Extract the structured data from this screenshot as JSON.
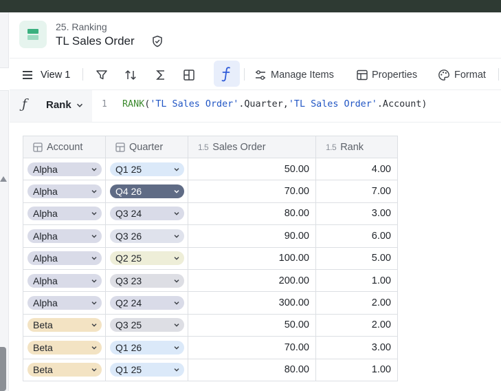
{
  "header": {
    "breadcrumb": "25. Ranking",
    "title": "TL Sales Order"
  },
  "toolbar": {
    "view_label": "View 1",
    "manage_items": "Manage Items",
    "properties": "Properties",
    "format": "Format"
  },
  "formula": {
    "field": "Rank",
    "line_number": "1",
    "fn": "RANK",
    "arg1": "'TL Sales Order'",
    "arg1_field": ".Quarter,",
    "arg2": "'TL Sales Order'",
    "arg2_field": ".Account)"
  },
  "table": {
    "columns": [
      "Account",
      "Quarter",
      "Sales Order",
      "Rank"
    ],
    "number_icon": "1.5",
    "rows": [
      {
        "account": "Alpha",
        "quarter": "Q1 25",
        "qcolor": "#dbe9f9",
        "qtext": "#1f2329",
        "sales": "50.00",
        "rank": "4.00"
      },
      {
        "account": "Alpha",
        "quarter": "Q4 26",
        "qcolor": "#5f6b85",
        "qtext": "#ffffff",
        "sales": "70.00",
        "rank": "7.00"
      },
      {
        "account": "Alpha",
        "quarter": "Q3 24",
        "qcolor": "#d9dbe8",
        "qtext": "#1f2329",
        "sales": "80.00",
        "rank": "3.00"
      },
      {
        "account": "Alpha",
        "quarter": "Q3 26",
        "qcolor": "#dfe2ec",
        "qtext": "#1f2329",
        "sales": "90.00",
        "rank": "6.00"
      },
      {
        "account": "Alpha",
        "quarter": "Q2 25",
        "qcolor": "#eeeed8",
        "qtext": "#1f2329",
        "sales": "100.00",
        "rank": "5.00"
      },
      {
        "account": "Alpha",
        "quarter": "Q3 23",
        "qcolor": "#dddee4",
        "qtext": "#1f2329",
        "sales": "200.00",
        "rank": "1.00"
      },
      {
        "account": "Alpha",
        "quarter": "Q2 24",
        "qcolor": "#d9dbe8",
        "qtext": "#1f2329",
        "sales": "300.00",
        "rank": "2.00"
      },
      {
        "account": "Beta",
        "quarter": "Q3 25",
        "qcolor": "#dddee4",
        "qtext": "#1f2329",
        "sales": "50.00",
        "rank": "2.00"
      },
      {
        "account": "Beta",
        "quarter": "Q1 26",
        "qcolor": "#dbe9f9",
        "qtext": "#1f2329",
        "sales": "70.00",
        "rank": "3.00"
      },
      {
        "account": "Beta",
        "quarter": "Q1 25",
        "qcolor": "#dbe9f9",
        "qtext": "#1f2329",
        "sales": "80.00",
        "rank": "1.00"
      }
    ]
  }
}
